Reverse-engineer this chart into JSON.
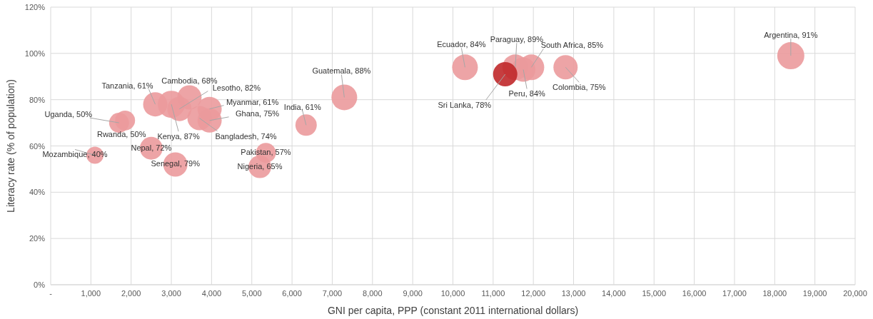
{
  "chart_data": {
    "type": "bubble",
    "xlabel": "GNI per capita, PPP (constant 2011 international dollars)",
    "ylabel": "Literacy rate (% of population)",
    "xlim": [
      0,
      20000
    ],
    "ylim": [
      0,
      120
    ],
    "xticks": [
      {
        "value": 0,
        "label": "-"
      },
      {
        "value": 1000,
        "label": "1,000"
      },
      {
        "value": 2000,
        "label": "2,000"
      },
      {
        "value": 3000,
        "label": "3,000"
      },
      {
        "value": 4000,
        "label": "4,000"
      },
      {
        "value": 5000,
        "label": "5,000"
      },
      {
        "value": 6000,
        "label": "6,000"
      },
      {
        "value": 7000,
        "label": "7,000"
      },
      {
        "value": 8000,
        "label": "8,000"
      },
      {
        "value": 9000,
        "label": "9,000"
      },
      {
        "value": 10000,
        "label": "10,000"
      },
      {
        "value": 11000,
        "label": "11,000"
      },
      {
        "value": 12000,
        "label": "12,000"
      },
      {
        "value": 13000,
        "label": "13,000"
      },
      {
        "value": 14000,
        "label": "14,000"
      },
      {
        "value": 15000,
        "label": "15,000"
      },
      {
        "value": 16000,
        "label": "16,000"
      },
      {
        "value": 17000,
        "label": "17,000"
      },
      {
        "value": 18000,
        "label": "18,000"
      },
      {
        "value": 19000,
        "label": "19,000"
      },
      {
        "value": 20000,
        "label": "20,000"
      }
    ],
    "yticks": [
      {
        "value": 0,
        "label": "0%"
      },
      {
        "value": 20,
        "label": "20%"
      },
      {
        "value": 40,
        "label": "40%"
      },
      {
        "value": 60,
        "label": "60%"
      },
      {
        "value": 80,
        "label": "80%"
      },
      {
        "value": 100,
        "label": "100%"
      },
      {
        "value": 120,
        "label": "120%"
      }
    ],
    "grid": true,
    "x": [
      1100,
      1700,
      1850,
      2600,
      3000,
      3450,
      3200,
      3950,
      3950,
      3700,
      2500,
      3100,
      5350,
      5200,
      6350,
      7300,
      10300,
      11550,
      11750,
      11950,
      11300,
      12800,
      18400
    ],
    "values": [
      56,
      70,
      71,
      78,
      78,
      81,
      76,
      76,
      71,
      72,
      59,
      52,
      57,
      51,
      69,
      81,
      94,
      94,
      93,
      94,
      91,
      94,
      99
    ],
    "sizes": [
      0.4,
      0.54,
      0.54,
      0.8,
      1,
      0.8,
      0.8,
      0.8,
      0.8,
      0.8,
      0.7,
      0.8,
      0.54,
      0.7,
      0.62,
      0.9,
      0.9,
      0.9,
      0.8,
      0.9,
      0.8,
      0.8,
      1
    ],
    "colors": [
      "#eb9a9c",
      "#eb9a9c",
      "#eb9a9c",
      "#eb9a9c",
      "#eb9a9c",
      "#eb9a9c",
      "#eb9a9c",
      "#eb9a9c",
      "#eb9a9c",
      "#eb9a9c",
      "#eb9a9c",
      "#eb9a9c",
      "#eb9a9c",
      "#eb9a9c",
      "#eb9a9c",
      "#eb9a9c",
      "#eb9a9c",
      "#eb9a9c",
      "#eb9a9c",
      "#eb9a9c",
      "#c0282a",
      "#eb9a9c",
      "#eb9a9c"
    ],
    "annotations": [
      {
        "text": "Mozambique, 40%",
        "x": 1100,
        "y": 56
      },
      {
        "text": "Uganda, 50%",
        "x": 1700,
        "y": 70
      },
      {
        "text": "Rwanda, 50%",
        "x": 1850,
        "y": 71
      },
      {
        "text": "Tanzania, 61%",
        "x": 2600,
        "y": 78
      },
      {
        "text": "Kenya, 87%",
        "x": 3000,
        "y": 78
      },
      {
        "text": "Cambodia, 68%",
        "x": 3450,
        "y": 81
      },
      {
        "text": "Lesotho, 82%",
        "x": 3200,
        "y": 76
      },
      {
        "text": "Myanmar, 61%",
        "x": 3950,
        "y": 76
      },
      {
        "text": "Ghana, 75%",
        "x": 3950,
        "y": 71
      },
      {
        "text": "Bangladesh, 74%",
        "x": 3700,
        "y": 72
      },
      {
        "text": "Nepal, 72%",
        "x": 2500,
        "y": 59
      },
      {
        "text": "Senegal, 79%",
        "x": 3100,
        "y": 52
      },
      {
        "text": "Pakistan, 57%",
        "x": 5350,
        "y": 57
      },
      {
        "text": "Nigeria, 65%",
        "x": 5200,
        "y": 51
      },
      {
        "text": "India, 61%",
        "x": 6350,
        "y": 69
      },
      {
        "text": "Guatemala, 88%",
        "x": 7300,
        "y": 81
      },
      {
        "text": "Ecuador, 84%",
        "x": 10300,
        "y": 94
      },
      {
        "text": "Paraguay, 89%",
        "x": 11550,
        "y": 94
      },
      {
        "text": "Peru, 84%",
        "x": 11750,
        "y": 93
      },
      {
        "text": "South Africa, 85%",
        "x": 11950,
        "y": 94
      },
      {
        "text": "Sri Lanka, 78%",
        "x": 11300,
        "y": 91
      },
      {
        "text": "Colombia, 75%",
        "x": 12800,
        "y": 94
      },
      {
        "text": "Argentina, 91%",
        "x": 18400,
        "y": 99
      }
    ]
  }
}
